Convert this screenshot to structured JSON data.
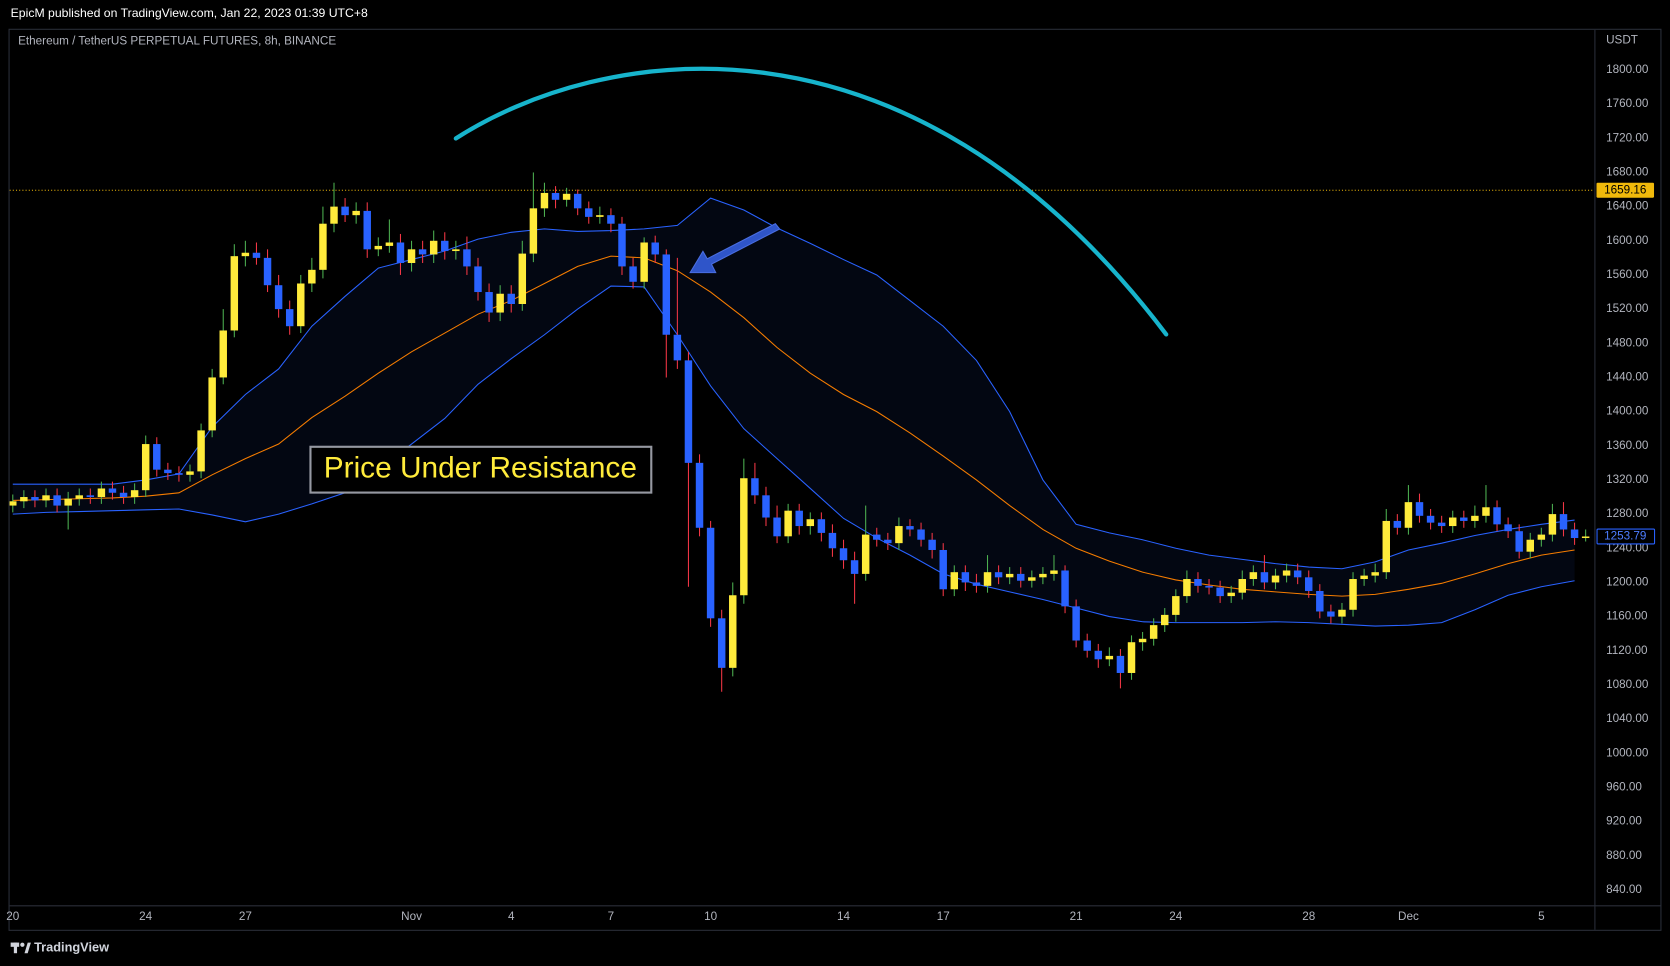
{
  "header": {
    "publisher": "EpicM published on TradingView.com, Jan 22, 2023 01:39 UTC+8"
  },
  "footer": {
    "brand": "TradingView"
  },
  "chart_data": {
    "type": "candlestick",
    "title": "Ethereum / TetherUS PERPETUAL FUTURES, 8h, BINANCE",
    "y_axis_label": "USDT",
    "annotation": "Price Under Resistance",
    "up_color": "#ffeb3b",
    "down_color": "#2962ff",
    "up_wick_color": "#4caf50",
    "down_wick_color": "#f23645",
    "grid": false,
    "ylim": [
      822,
      1847
    ],
    "yticks": [
      {
        "value": 840,
        "label": "840.00"
      },
      {
        "value": 880,
        "label": "880.00"
      },
      {
        "value": 920,
        "label": "920.00"
      },
      {
        "value": 960,
        "label": "960.00"
      },
      {
        "value": 1000,
        "label": "1000.00"
      },
      {
        "value": 1040,
        "label": "1040.00"
      },
      {
        "value": 1080,
        "label": "1080.00"
      },
      {
        "value": 1120,
        "label": "1120.00"
      },
      {
        "value": 1160,
        "label": "1160.00"
      },
      {
        "value": 1200,
        "label": "1200.00"
      },
      {
        "value": 1240,
        "label": "1240.00"
      },
      {
        "value": 1280,
        "label": "1280.00"
      },
      {
        "value": 1320,
        "label": "1320.00"
      },
      {
        "value": 1360,
        "label": "1360.00"
      },
      {
        "value": 1400,
        "label": "1400.00"
      },
      {
        "value": 1440,
        "label": "1440.00"
      },
      {
        "value": 1480,
        "label": "1480.00"
      },
      {
        "value": 1520,
        "label": "1520.00"
      },
      {
        "value": 1560,
        "label": "1560.00"
      },
      {
        "value": 1600,
        "label": "1600.00"
      },
      {
        "value": 1640,
        "label": "1640.00"
      },
      {
        "value": 1680,
        "label": "1680.00"
      },
      {
        "value": 1720,
        "label": "1720.00"
      },
      {
        "value": 1760,
        "label": "1760.00"
      },
      {
        "value": 1800,
        "label": "1800.00"
      }
    ],
    "price_line": 1659.16,
    "price_line_color": "#f0b90b",
    "band_fill": "rgba(41,98,255,0.07)",
    "categories": [
      "20",
      null,
      null,
      null,
      null,
      null,
      null,
      null,
      null,
      null,
      null,
      null,
      "24",
      null,
      null,
      null,
      null,
      null,
      null,
      null,
      null,
      "27",
      null,
      null,
      null,
      null,
      null,
      null,
      null,
      null,
      null,
      null,
      null,
      null,
      null,
      null,
      "Nov",
      null,
      null,
      null,
      null,
      null,
      null,
      null,
      null,
      "4",
      null,
      null,
      null,
      null,
      null,
      null,
      null,
      null,
      "7",
      null,
      null,
      null,
      null,
      null,
      null,
      null,
      null,
      "10",
      null,
      null,
      null,
      null,
      null,
      null,
      null,
      null,
      null,
      null,
      null,
      "14",
      null,
      null,
      null,
      null,
      null,
      null,
      null,
      null,
      "17",
      null,
      null,
      null,
      null,
      null,
      null,
      null,
      null,
      null,
      null,
      null,
      "21",
      null,
      null,
      null,
      null,
      null,
      null,
      null,
      null,
      "24",
      null,
      null,
      null,
      null,
      null,
      null,
      null,
      null,
      null,
      null,
      null,
      "28",
      null,
      null,
      null,
      null,
      null,
      null,
      null,
      null,
      "Dec",
      null,
      null,
      null,
      null,
      null,
      null,
      null,
      null,
      null,
      null,
      null,
      "5",
      null,
      null,
      null,
      null
    ],
    "open": [
      1290,
      1295,
      1300,
      1296,
      1302,
      1290,
      1298,
      1302,
      1300,
      1310,
      1305,
      1300,
      1308,
      1362,
      1332,
      1328,
      1326,
      1330,
      1378,
      1440,
      1495,
      1582,
      1586,
      1580,
      1548,
      1520,
      1500,
      1550,
      1566,
      1620,
      1640,
      1630,
      1635,
      1590,
      1594,
      1598,
      1574,
      1590,
      1584,
      1600,
      1588,
      1590,
      1570,
      1540,
      1516,
      1538,
      1526,
      1585,
      1638,
      1656,
      1648,
      1655,
      1638,
      1628,
      1630,
      1620,
      1570,
      1552,
      1598,
      1584,
      1490,
      1460,
      1340,
      1264,
      1158,
      1100,
      1185,
      1322,
      1302,
      1276,
      1254,
      1284,
      1266,
      1274,
      1258,
      1240,
      1226,
      1210,
      1256,
      1250,
      1246,
      1266,
      1262,
      1250,
      1238,
      1192,
      1212,
      1200,
      1196,
      1212,
      1206,
      1210,
      1202,
      1206,
      1210,
      1214,
      1172,
      1132,
      1120,
      1110,
      1114,
      1094,
      1130,
      1134,
      1150,
      1162,
      1184,
      1204,
      1196,
      1194,
      1184,
      1188,
      1204,
      1212,
      1200,
      1208,
      1214,
      1206,
      1190,
      1166,
      1160,
      1168,
      1204,
      1208,
      1212,
      1272,
      1264,
      1294,
      1278,
      1270,
      1266,
      1276,
      1272,
      1278,
      1288,
      1268,
      1260,
      1236,
      1250,
      1256,
      1280,
      1262,
      1252
    ],
    "high": [
      1303,
      1308,
      1308,
      1310,
      1310,
      1306,
      1310,
      1310,
      1318,
      1318,
      1313,
      1316,
      1372,
      1370,
      1340,
      1336,
      1338,
      1386,
      1450,
      1520,
      1596,
      1600,
      1598,
      1590,
      1560,
      1530,
      1560,
      1580,
      1640,
      1668,
      1650,
      1645,
      1645,
      1604,
      1625,
      1608,
      1600,
      1600,
      1612,
      1610,
      1600,
      1605,
      1580,
      1550,
      1548,
      1548,
      1600,
      1680,
      1668,
      1664,
      1662,
      1660,
      1646,
      1640,
      1638,
      1628,
      1580,
      1604,
      1606,
      1590,
      1580,
      1470,
      1350,
      1272,
      1168,
      1200,
      1345,
      1340,
      1312,
      1290,
      1292,
      1292,
      1282,
      1282,
      1268,
      1250,
      1236,
      1290,
      1264,
      1258,
      1276,
      1274,
      1270,
      1258,
      1246,
      1220,
      1220,
      1210,
      1232,
      1220,
      1218,
      1218,
      1214,
      1218,
      1232,
      1220,
      1180,
      1140,
      1128,
      1124,
      1122,
      1138,
      1142,
      1158,
      1170,
      1192,
      1214,
      1212,
      1204,
      1202,
      1196,
      1214,
      1220,
      1232,
      1216,
      1222,
      1222,
      1214,
      1198,
      1174,
      1176,
      1212,
      1216,
      1222,
      1286,
      1280,
      1314,
      1304,
      1286,
      1278,
      1284,
      1284,
      1290,
      1314,
      1296,
      1276,
      1268,
      1258,
      1264,
      1292,
      1294,
      1270,
      1262
    ],
    "low": [
      1282,
      1287,
      1288,
      1288,
      1282,
      1262,
      1290,
      1292,
      1292,
      1297,
      1292,
      1292,
      1300,
      1324,
      1320,
      1318,
      1318,
      1322,
      1370,
      1432,
      1487,
      1570,
      1572,
      1540,
      1510,
      1490,
      1492,
      1540,
      1556,
      1610,
      1622,
      1620,
      1580,
      1582,
      1586,
      1560,
      1564,
      1574,
      1574,
      1578,
      1578,
      1560,
      1530,
      1505,
      1506,
      1516,
      1518,
      1575,
      1628,
      1638,
      1640,
      1630,
      1620,
      1620,
      1610,
      1560,
      1544,
      1544,
      1574,
      1440,
      1450,
      1195,
      1254,
      1148,
      1072,
      1090,
      1175,
      1292,
      1266,
      1246,
      1246,
      1256,
      1256,
      1248,
      1230,
      1216,
      1175,
      1202,
      1242,
      1238,
      1238,
      1254,
      1242,
      1228,
      1184,
      1184,
      1190,
      1188,
      1188,
      1198,
      1198,
      1194,
      1194,
      1198,
      1202,
      1164,
      1124,
      1112,
      1100,
      1102,
      1076,
      1086,
      1120,
      1126,
      1142,
      1154,
      1176,
      1188,
      1186,
      1176,
      1176,
      1180,
      1196,
      1192,
      1192,
      1200,
      1198,
      1182,
      1158,
      1152,
      1152,
      1160,
      1196,
      1200,
      1204,
      1256,
      1256,
      1270,
      1262,
      1258,
      1258,
      1264,
      1264,
      1270,
      1260,
      1252,
      1228,
      1228,
      1242,
      1248,
      1254,
      1244,
      1248
    ],
    "close": [
      1295,
      1300,
      1296,
      1302,
      1290,
      1298,
      1302,
      1300,
      1310,
      1305,
      1300,
      1308,
      1362,
      1332,
      1328,
      1326,
      1330,
      1378,
      1440,
      1495,
      1582,
      1586,
      1580,
      1548,
      1520,
      1500,
      1550,
      1566,
      1620,
      1640,
      1630,
      1635,
      1590,
      1594,
      1598,
      1574,
      1590,
      1584,
      1600,
      1588,
      1590,
      1570,
      1540,
      1516,
      1538,
      1526,
      1585,
      1638,
      1656,
      1648,
      1655,
      1638,
      1628,
      1630,
      1620,
      1570,
      1552,
      1598,
      1584,
      1490,
      1460,
      1340,
      1264,
      1158,
      1100,
      1185,
      1322,
      1302,
      1276,
      1254,
      1284,
      1266,
      1274,
      1258,
      1240,
      1226,
      1210,
      1256,
      1250,
      1246,
      1266,
      1262,
      1250,
      1238,
      1192,
      1212,
      1200,
      1196,
      1212,
      1206,
      1210,
      1202,
      1206,
      1210,
      1214,
      1172,
      1132,
      1120,
      1110,
      1114,
      1094,
      1130,
      1134,
      1150,
      1162,
      1184,
      1204,
      1196,
      1194,
      1184,
      1188,
      1204,
      1212,
      1200,
      1208,
      1214,
      1206,
      1190,
      1166,
      1160,
      1168,
      1204,
      1208,
      1212,
      1272,
      1264,
      1294,
      1278,
      1270,
      1266,
      1276,
      1272,
      1278,
      1288,
      1268,
      1260,
      1236,
      1250,
      1256,
      1280,
      1262,
      1252,
      1253.79
    ],
    "overlays": [
      {
        "color": "#2962ff",
        "values": [
          1315,
          1315,
          1315,
          1315,
          1320,
          1327,
          1382,
          1420,
          1450,
          1500,
          1535,
          1568,
          1578,
          1588,
          1602,
          1610,
          1614,
          1611,
          1612,
          1614,
          1618,
          1650,
          1636,
          1615,
          1597,
          1578,
          1560,
          1530,
          1500,
          1460,
          1400,
          1320,
          1268,
          1258,
          1250,
          1240,
          1232,
          1227,
          1222,
          1218,
          1216,
          1224,
          1238,
          1246,
          1255,
          1262,
          1268,
          1273
        ]
      },
      {
        "color": "#f57c00",
        "values": [
          1296,
          1297,
          1298,
          1299,
          1301,
          1305,
          1326,
          1345,
          1362,
          1393,
          1418,
          1445,
          1470,
          1492,
          1514,
          1530,
          1550,
          1570,
          1582,
          1580,
          1565,
          1540,
          1510,
          1475,
          1445,
          1420,
          1400,
          1375,
          1348,
          1320,
          1290,
          1262,
          1240,
          1225,
          1212,
          1203,
          1197,
          1192,
          1189,
          1186,
          1184,
          1186,
          1192,
          1199,
          1210,
          1222,
          1232,
          1238
        ]
      },
      {
        "color": "#2962ff",
        "values": [
          1280,
          1282,
          1283,
          1284,
          1285,
          1286,
          1279,
          1271,
          1280,
          1292,
          1305,
          1332,
          1362,
          1392,
          1432,
          1462,
          1490,
          1520,
          1547,
          1546,
          1490,
          1430,
          1380,
          1345,
          1310,
          1275,
          1252,
          1232,
          1210,
          1198,
          1189,
          1180,
          1170,
          1160,
          1154,
          1153,
          1153,
          1153,
          1154,
          1153,
          1151,
          1149,
          1150,
          1153,
          1168,
          1185,
          1195,
          1202
        ]
      }
    ]
  }
}
